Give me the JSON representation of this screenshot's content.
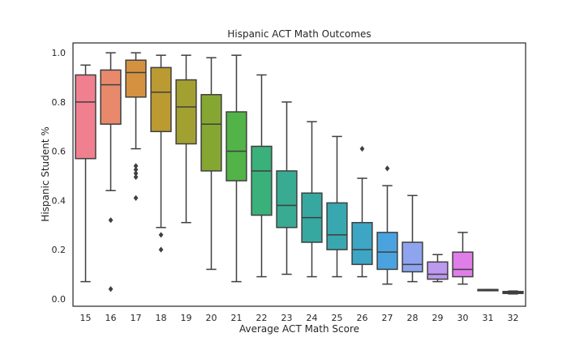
{
  "chart_data": {
    "type": "box",
    "title": "Hispanic ACT Math Outcomes",
    "xlabel": "Average ACT Math Score",
    "ylabel": "Hispanic Student %",
    "ylim": [
      -0.03,
      1.04
    ],
    "yticks": [
      "0.0",
      "0.2",
      "0.4",
      "0.6",
      "0.8",
      "1.0"
    ],
    "grid": false,
    "legend": "none",
    "categories": [
      "15",
      "16",
      "17",
      "18",
      "19",
      "20",
      "21",
      "22",
      "23",
      "24",
      "25",
      "26",
      "27",
      "28",
      "29",
      "30",
      "31",
      "32"
    ],
    "boxes": [
      {
        "category": "15",
        "whisker_low": 0.07,
        "q1": 0.57,
        "median": 0.8,
        "q3": 0.91,
        "whisker_high": 0.95,
        "outliers": [],
        "color": "#f07f8f"
      },
      {
        "category": "16",
        "whisker_low": 0.44,
        "q1": 0.71,
        "median": 0.87,
        "q3": 0.93,
        "whisker_high": 1.0,
        "outliers": [
          0.32,
          0.04
        ],
        "color": "#e8896c"
      },
      {
        "category": "17",
        "whisker_low": 0.61,
        "q1": 0.82,
        "median": 0.92,
        "q3": 0.97,
        "whisker_high": 1.0,
        "outliers": [
          0.54,
          0.525,
          0.51,
          0.495,
          0.41
        ],
        "color": "#d4913f"
      },
      {
        "category": "18",
        "whisker_low": 0.29,
        "q1": 0.68,
        "median": 0.84,
        "q3": 0.94,
        "whisker_high": 0.99,
        "outliers": [
          0.26,
          0.2
        ],
        "color": "#bc9a32"
      },
      {
        "category": "19",
        "whisker_low": 0.31,
        "q1": 0.63,
        "median": 0.78,
        "q3": 0.89,
        "whisker_high": 0.99,
        "outliers": [],
        "color": "#a3a032"
      },
      {
        "category": "20",
        "whisker_low": 0.12,
        "q1": 0.52,
        "median": 0.71,
        "q3": 0.83,
        "whisker_high": 0.98,
        "outliers": [],
        "color": "#85a732"
      },
      {
        "category": "21",
        "whisker_low": 0.07,
        "q1": 0.48,
        "median": 0.6,
        "q3": 0.76,
        "whisker_high": 0.99,
        "outliers": [],
        "color": "#52b348"
      },
      {
        "category": "22",
        "whisker_low": 0.09,
        "q1": 0.34,
        "median": 0.52,
        "q3": 0.62,
        "whisker_high": 0.91,
        "outliers": [],
        "color": "#3ab07a"
      },
      {
        "category": "23",
        "whisker_low": 0.1,
        "q1": 0.29,
        "median": 0.38,
        "q3": 0.52,
        "whisker_high": 0.8,
        "outliers": [],
        "color": "#39ab93"
      },
      {
        "category": "24",
        "whisker_low": 0.09,
        "q1": 0.23,
        "median": 0.33,
        "q3": 0.43,
        "whisker_high": 0.72,
        "outliers": [],
        "color": "#37a8a0"
      },
      {
        "category": "25",
        "whisker_low": 0.09,
        "q1": 0.2,
        "median": 0.26,
        "q3": 0.39,
        "whisker_high": 0.66,
        "outliers": [],
        "color": "#39a7b0"
      },
      {
        "category": "26",
        "whisker_low": 0.09,
        "q1": 0.14,
        "median": 0.2,
        "q3": 0.31,
        "whisker_high": 0.49,
        "outliers": [
          0.61
        ],
        "color": "#3ca6c4"
      },
      {
        "category": "27",
        "whisker_low": 0.06,
        "q1": 0.12,
        "median": 0.19,
        "q3": 0.27,
        "whisker_high": 0.46,
        "outliers": [
          0.53
        ],
        "color": "#4aa3de"
      },
      {
        "category": "28",
        "whisker_low": 0.07,
        "q1": 0.11,
        "median": 0.14,
        "q3": 0.23,
        "whisker_high": 0.42,
        "outliers": [],
        "color": "#8fa4ee"
      },
      {
        "category": "29",
        "whisker_low": 0.07,
        "q1": 0.08,
        "median": 0.1,
        "q3": 0.15,
        "whisker_high": 0.18,
        "outliers": [],
        "color": "#bd99ef"
      },
      {
        "category": "30",
        "whisker_low": 0.06,
        "q1": 0.09,
        "median": 0.12,
        "q3": 0.19,
        "whisker_high": 0.27,
        "outliers": [],
        "color": "#e07ee9"
      },
      {
        "category": "31",
        "whisker_low": 0.038,
        "q1": 0.038,
        "median": 0.038,
        "q3": 0.038,
        "whisker_high": 0.038,
        "outliers": [],
        "color": "#f078d4"
      },
      {
        "category": "32",
        "whisker_low": 0.02,
        "q1": 0.022,
        "median": 0.026,
        "q3": 0.03,
        "whisker_high": 0.032,
        "outliers": [],
        "color": "#f37bb6"
      }
    ]
  }
}
